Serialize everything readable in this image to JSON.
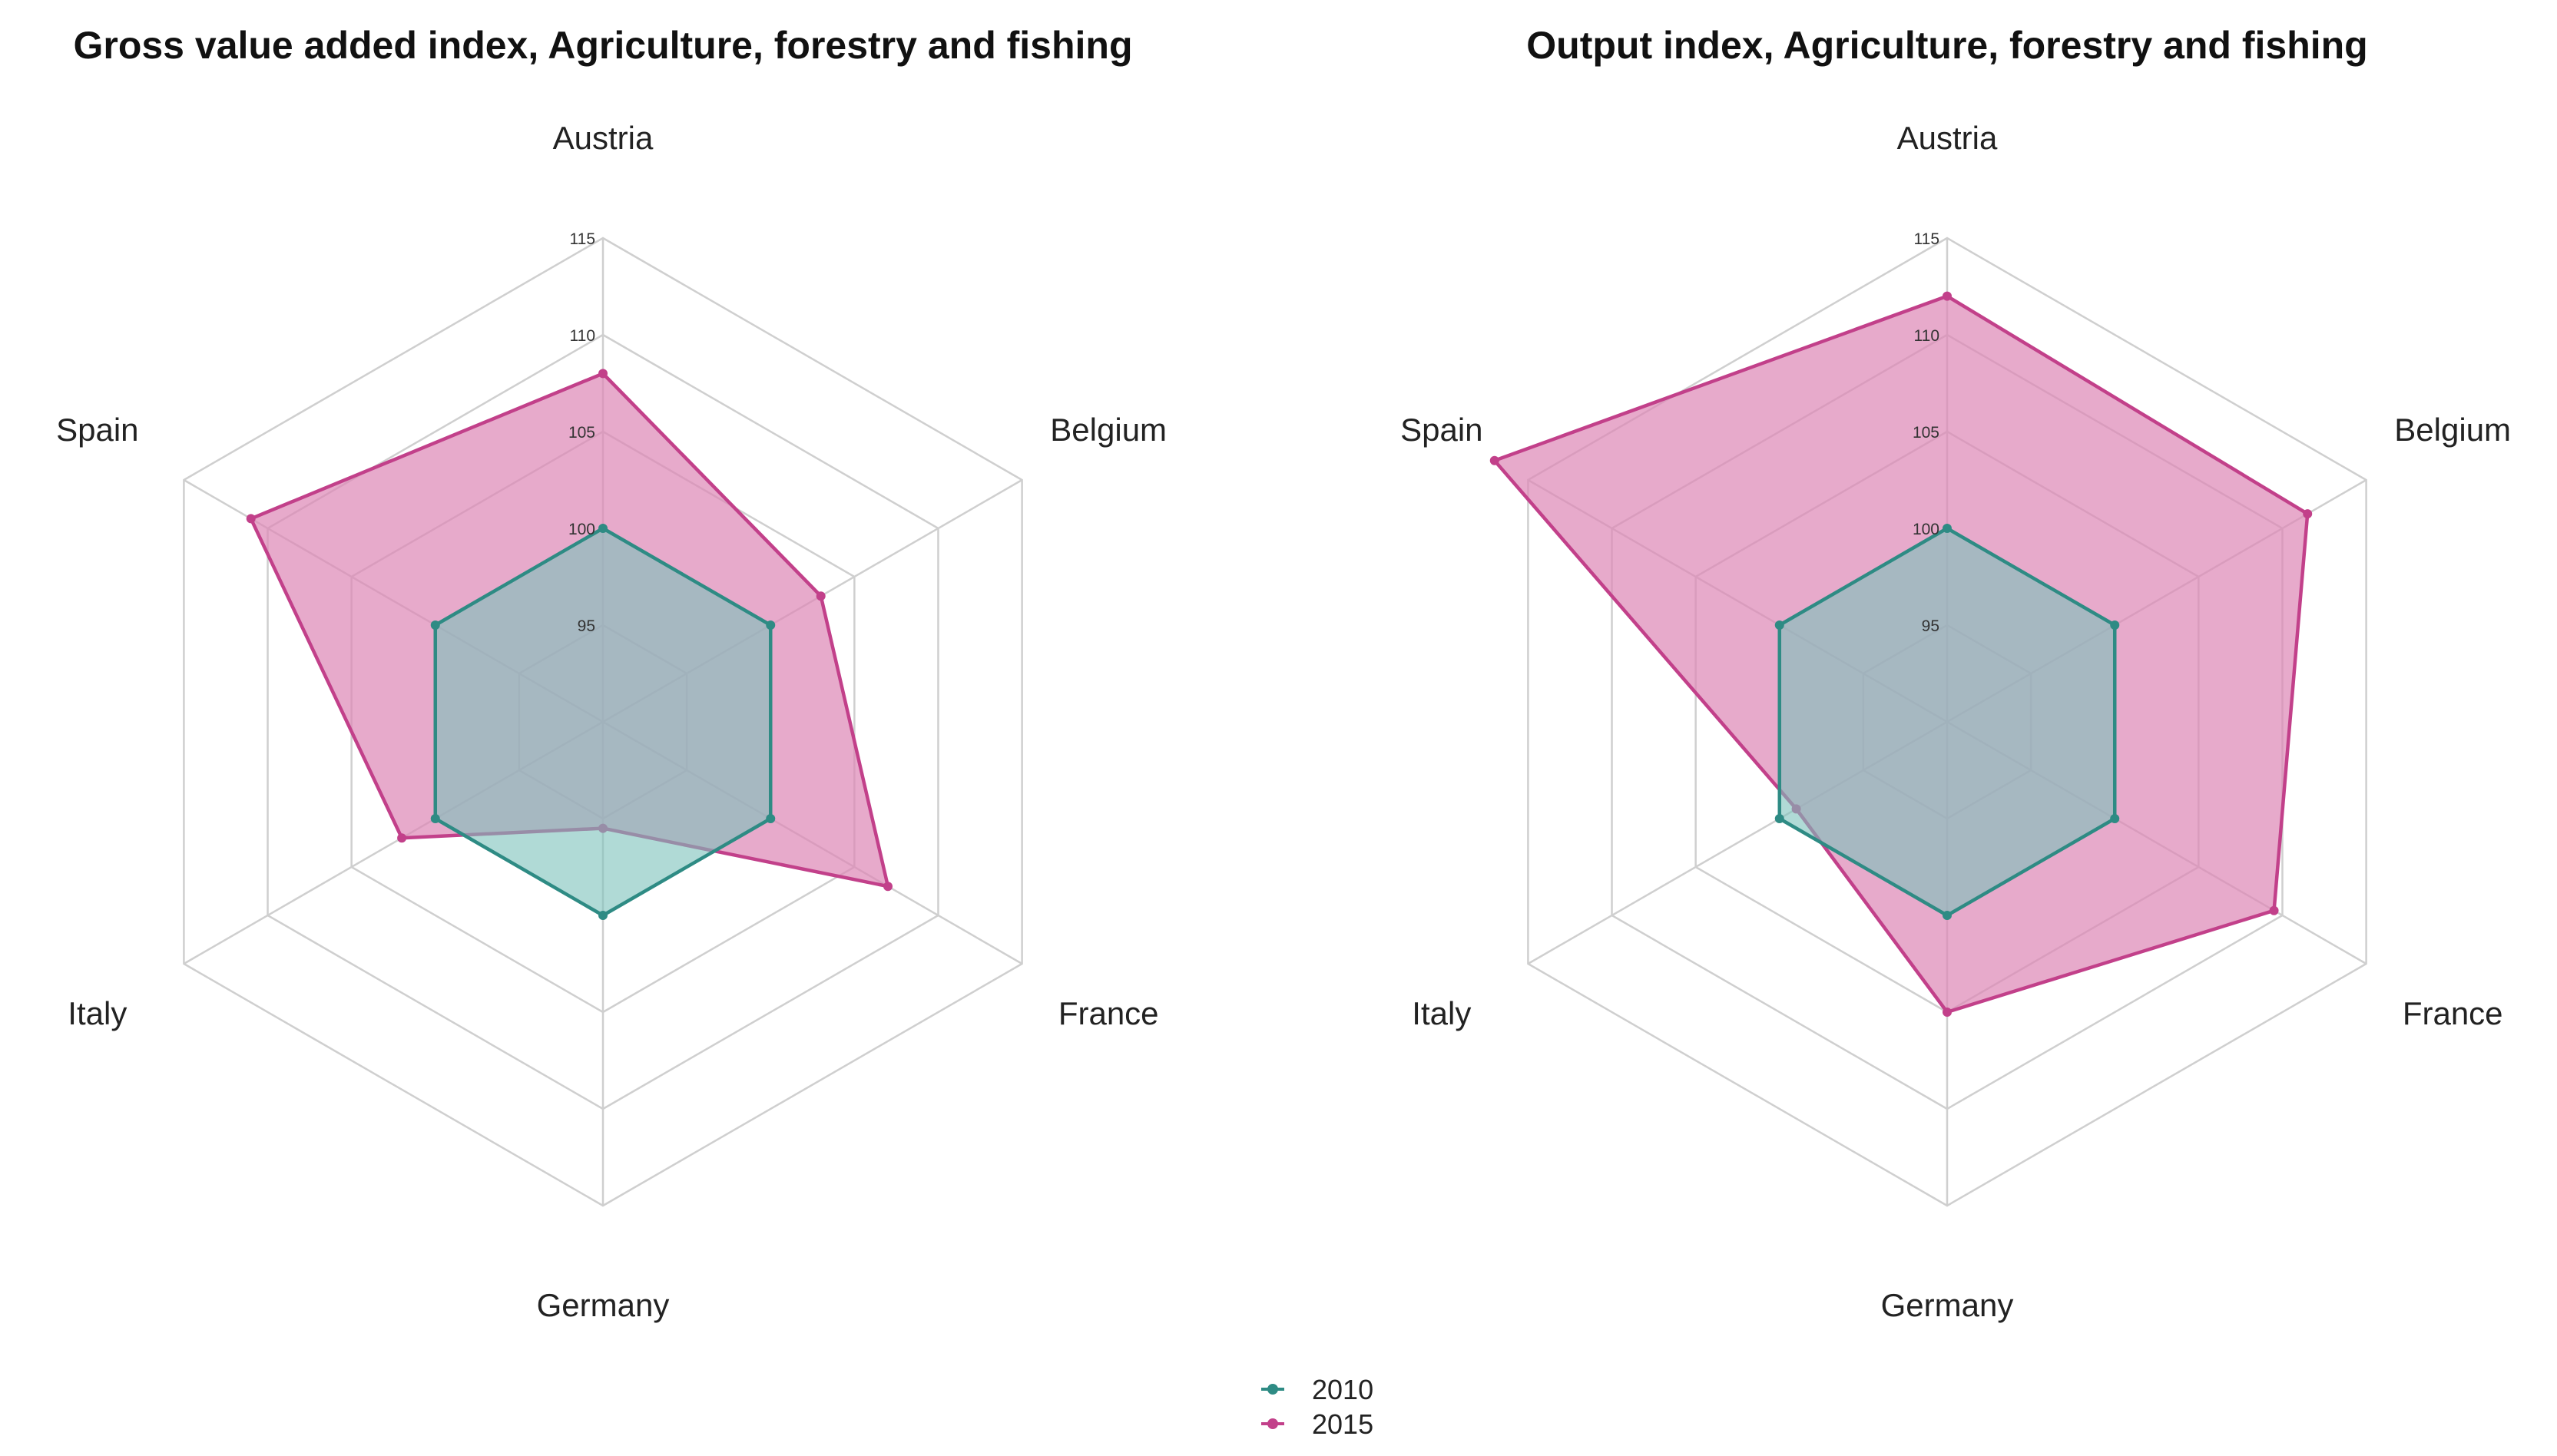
{
  "chart_data": [
    {
      "type": "radar",
      "title": "Gross value added index, Agriculture, forestry and fishing",
      "categories": [
        "Austria",
        "Belgium",
        "France",
        "Germany",
        "Italy",
        "Spain"
      ],
      "rlim": [
        90,
        115
      ],
      "ticks": [
        95,
        100,
        105,
        110,
        115
      ],
      "grid": true,
      "series": [
        {
          "name": "2010",
          "values": [
            100,
            100,
            100,
            100,
            100,
            100
          ]
        },
        {
          "name": "2015",
          "values": [
            108,
            103,
            107,
            95.5,
            102,
            111
          ]
        }
      ]
    },
    {
      "type": "radar",
      "title": "Output index, Agriculture, forestry and fishing",
      "categories": [
        "Austria",
        "Belgium",
        "France",
        "Germany",
        "Italy",
        "Spain"
      ],
      "rlim": [
        90,
        115
      ],
      "ticks": [
        95,
        100,
        105,
        110,
        115
      ],
      "grid": true,
      "series": [
        {
          "name": "2010",
          "values": [
            100,
            100,
            100,
            100,
            100,
            100
          ]
        },
        {
          "name": "2015",
          "values": [
            112,
            111.5,
            109.5,
            105,
            99,
            117
          ]
        }
      ]
    }
  ],
  "legend": {
    "position": "bottom",
    "items": [
      {
        "label": "2010",
        "color": "#2e8b84"
      },
      {
        "label": "2015",
        "color": "#c2408a"
      }
    ]
  },
  "colors": {
    "s2010_line": "#2e8b84",
    "s2010_fill": "#7cc1bb",
    "s2015_line": "#c2408a",
    "s2015_fill": "#dd86b5",
    "grid": "#cfcfcf"
  }
}
